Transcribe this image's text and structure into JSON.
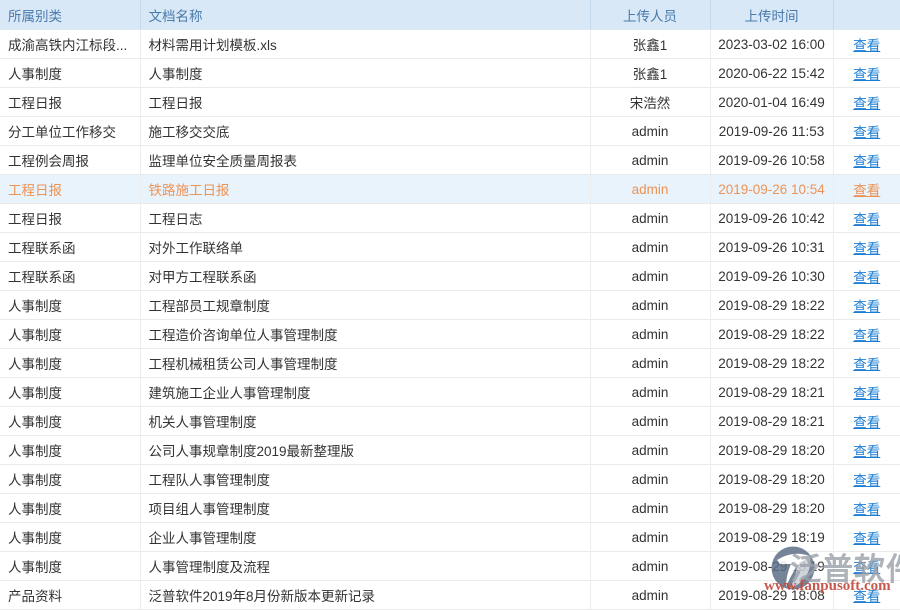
{
  "table": {
    "columns": [
      {
        "key": "category",
        "label": "所属别类"
      },
      {
        "key": "doc_name",
        "label": "文档名称"
      },
      {
        "key": "uploader",
        "label": "上传人员"
      },
      {
        "key": "upload_time",
        "label": "上传时间"
      },
      {
        "key": "action",
        "label": ""
      }
    ],
    "action_label": "查看",
    "rows": [
      {
        "category": "成渝高铁内江标段...",
        "doc_name": "材料需用计划模板.xls",
        "uploader": "张鑫1",
        "upload_time": "2023-03-02 16:00",
        "highlighted": false
      },
      {
        "category": "人事制度",
        "doc_name": "人事制度",
        "uploader": "张鑫1",
        "upload_time": "2020-06-22 15:42",
        "highlighted": false
      },
      {
        "category": "工程日报",
        "doc_name": "工程日报",
        "uploader": "宋浩然",
        "upload_time": "2020-01-04 16:49",
        "highlighted": false
      },
      {
        "category": "分工单位工作移交",
        "doc_name": "施工移交交底",
        "uploader": "admin",
        "upload_time": "2019-09-26 11:53",
        "highlighted": false
      },
      {
        "category": "工程例会周报",
        "doc_name": "监理单位安全质量周报表",
        "uploader": "admin",
        "upload_time": "2019-09-26 10:58",
        "highlighted": false
      },
      {
        "category": "工程日报",
        "doc_name": "铁路施工日报",
        "uploader": "admin",
        "upload_time": "2019-09-26 10:54",
        "highlighted": true
      },
      {
        "category": "工程日报",
        "doc_name": "工程日志",
        "uploader": "admin",
        "upload_time": "2019-09-26 10:42",
        "highlighted": false
      },
      {
        "category": "工程联系函",
        "doc_name": "对外工作联络单",
        "uploader": "admin",
        "upload_time": "2019-09-26 10:31",
        "highlighted": false
      },
      {
        "category": "工程联系函",
        "doc_name": "对甲方工程联系函",
        "uploader": "admin",
        "upload_time": "2019-09-26 10:30",
        "highlighted": false
      },
      {
        "category": "人事制度",
        "doc_name": "工程部员工规章制度",
        "uploader": "admin",
        "upload_time": "2019-08-29 18:22",
        "highlighted": false
      },
      {
        "category": "人事制度",
        "doc_name": "工程造价咨询单位人事管理制度",
        "uploader": "admin",
        "upload_time": "2019-08-29 18:22",
        "highlighted": false
      },
      {
        "category": "人事制度",
        "doc_name": "工程机械租赁公司人事管理制度",
        "uploader": "admin",
        "upload_time": "2019-08-29 18:22",
        "highlighted": false
      },
      {
        "category": "人事制度",
        "doc_name": "建筑施工企业人事管理制度",
        "uploader": "admin",
        "upload_time": "2019-08-29 18:21",
        "highlighted": false
      },
      {
        "category": "人事制度",
        "doc_name": "机关人事管理制度",
        "uploader": "admin",
        "upload_time": "2019-08-29 18:21",
        "highlighted": false
      },
      {
        "category": "人事制度",
        "doc_name": "公司人事规章制度2019最新整理版",
        "uploader": "admin",
        "upload_time": "2019-08-29 18:20",
        "highlighted": false
      },
      {
        "category": "人事制度",
        "doc_name": "工程队人事管理制度",
        "uploader": "admin",
        "upload_time": "2019-08-29 18:20",
        "highlighted": false
      },
      {
        "category": "人事制度",
        "doc_name": "项目组人事管理制度",
        "uploader": "admin",
        "upload_time": "2019-08-29 18:20",
        "highlighted": false
      },
      {
        "category": "人事制度",
        "doc_name": "企业人事管理制度",
        "uploader": "admin",
        "upload_time": "2019-08-29 18:19",
        "highlighted": false
      },
      {
        "category": "人事制度",
        "doc_name": "人事管理制度及流程",
        "uploader": "admin",
        "upload_time": "2019-08-29 18:19",
        "highlighted": false
      },
      {
        "category": "产品资料",
        "doc_name": "泛普软件2019年8月份新版本更新记录",
        "uploader": "admin",
        "upload_time": "2019-08-29 18:08",
        "highlighted": false
      }
    ]
  },
  "watermark": {
    "brand": "泛普软件",
    "url": "www.fanpusoft.com",
    "logo_icon": "fanpu-logo"
  },
  "colors": {
    "header_bg": "#d8e8f7",
    "header_text": "#4a7aab",
    "header_separator": "#c3d9ee",
    "row_border": "#eaeaea",
    "body_text": "#333333",
    "link_blue": "#1b7dd3",
    "highlight_bg": "#e9f3fc",
    "highlight_text": "#ed9356",
    "watermark_gray": "#9ba1aa",
    "watermark_red": "#c4473a"
  }
}
